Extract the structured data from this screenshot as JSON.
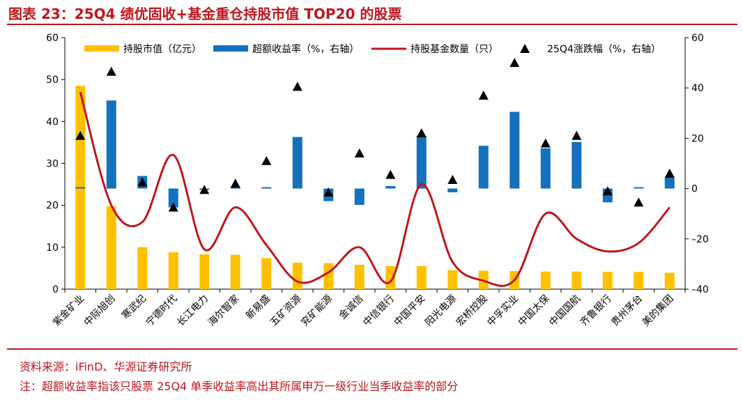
{
  "title": "图表 23：25Q4 绩优固收+基金重仓持股市值 TOP20 的股票",
  "source": "资料来源：iFinD、华源证券研究所",
  "note": "注：超额收益率指该只股票 25Q4 单季收益率高出其所属申万一级行业当季收益率的部分",
  "colors": {
    "bar_value": "#FFC000",
    "bar_excess": "#1570BE",
    "line_funds": "#C0161C",
    "marker_change": "#000000",
    "accent": "#C0161C"
  },
  "chart_data": {
    "type": "combo",
    "categories": [
      "紫金矿业",
      "中际旭创",
      "寒武纪",
      "宁德时代",
      "长江电力",
      "海尔智家",
      "新易盛",
      "五矿资源",
      "兖矿能源",
      "金诚信",
      "中信银行",
      "中国平安",
      "阳光电源",
      "宏桥控股",
      "中孚实业",
      "中国太保",
      "中国国航",
      "齐鲁银行",
      "贵州茅台",
      "美的集团"
    ],
    "left_axis": {
      "min": 0,
      "max": 60,
      "ticks": [
        0,
        10,
        20,
        30,
        40,
        50,
        60
      ]
    },
    "right_axis": {
      "min": -40,
      "max": 60,
      "ticks": [
        -40,
        -20,
        0,
        20,
        40,
        60
      ]
    },
    "series": [
      {
        "name": "持股市值（亿元）",
        "type": "bar",
        "axis": "left",
        "values": [
          48.5,
          19.8,
          10,
          8.8,
          8.3,
          8.2,
          7.4,
          6.3,
          6.2,
          5.8,
          5.5,
          5.5,
          4.5,
          4.4,
          4.3,
          4.2,
          4.2,
          4.1,
          4.1,
          3.9
        ]
      },
      {
        "name": "超额收益率（%，右轴）",
        "type": "bar",
        "axis": "right",
        "values": [
          0.5,
          35,
          5,
          -7.5,
          -0.5,
          0,
          0.5,
          20.5,
          -5,
          -6.5,
          1,
          21,
          -1.5,
          17,
          30.5,
          16,
          18.5,
          -5.5,
          0.3,
          4.5
        ]
      },
      {
        "name": "持股基金数量（只）",
        "type": "line",
        "axis": "left",
        "values": [
          47,
          20,
          16,
          32,
          9.5,
          19.5,
          10.5,
          1.8,
          4,
          10,
          1.8,
          25,
          6.5,
          2,
          2.2,
          18,
          12,
          9,
          11,
          19.5
        ]
      },
      {
        "name": "25Q4涨跌幅（%，右轴）",
        "type": "marker",
        "axis": "right",
        "values": [
          21,
          46.5,
          2.5,
          -7.5,
          -0.5,
          2,
          11,
          40.5,
          -1.5,
          14,
          5.5,
          22,
          3.5,
          37,
          50,
          18,
          21,
          -1,
          -5.5,
          6
        ]
      }
    ],
    "legend_position": "top",
    "legend": [
      "持股市值（亿元）",
      "超额收益率（%，右轴）",
      "持股基金数量（只）",
      "25Q4涨跌幅（%，右轴）"
    ]
  }
}
